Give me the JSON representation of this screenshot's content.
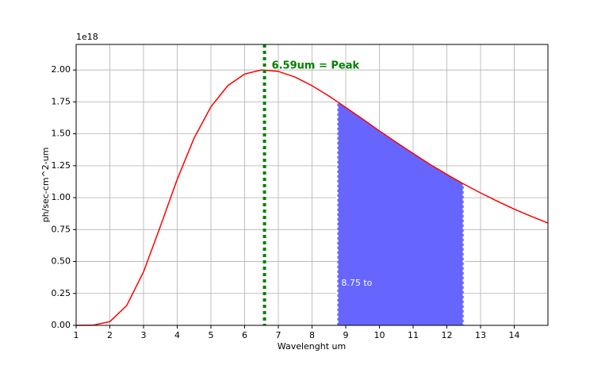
{
  "chart_data": {
    "type": "line",
    "x_label": "Wavelenght um",
    "y_label": "ph/sec-cm^2-um",
    "y_multiplier": "1e18",
    "x": [
      1,
      1.5,
      2,
      2.5,
      3,
      3.5,
      4,
      4.5,
      5,
      5.5,
      6,
      6.5,
      7,
      7.5,
      8,
      8.5,
      9,
      9.5,
      10,
      10.5,
      11,
      11.5,
      12,
      12.5,
      13,
      13.5,
      14,
      14.5,
      15
    ],
    "series": [
      {
        "color": "#ff0000",
        "values": [
          0,
          0.0012,
          0.029,
          0.155,
          0.419,
          0.775,
          1.144,
          1.466,
          1.712,
          1.877,
          1.968,
          2.0,
          1.989,
          1.944,
          1.877,
          1.796,
          1.707,
          1.616,
          1.523,
          1.433,
          1.346,
          1.261,
          1.182,
          1.107,
          1.037,
          0.972,
          0.91,
          0.854,
          0.801
        ]
      }
    ],
    "shaded": {
      "color": "#6666ff",
      "x": [
        8.75,
        9,
        9.5,
        10,
        10.5,
        11,
        11.5,
        12,
        12.5
      ],
      "values": [
        1.753,
        1.707,
        1.616,
        1.523,
        1.433,
        1.346,
        1.261,
        1.182,
        1.107
      ],
      "label": "8.75 to"
    },
    "peak": {
      "x": 6.59,
      "label": "6.59um = Peak",
      "color": "#008000"
    },
    "xlim": [
      1,
      15
    ],
    "ylim": [
      0,
      2.2
    ],
    "xticks": [
      1,
      2,
      3,
      4,
      5,
      6,
      7,
      8,
      9,
      10,
      11,
      12,
      13,
      14
    ],
    "yticks": [
      {
        "value": 0,
        "label": "0.00"
      },
      {
        "value": 0.25,
        "label": "0.25"
      },
      {
        "value": 0.5,
        "label": "0.50"
      },
      {
        "value": 0.75,
        "label": "0.75"
      },
      {
        "value": 1.0,
        "label": "1.00"
      },
      {
        "value": 1.25,
        "label": "1.25"
      },
      {
        "value": 1.5,
        "label": "1.50"
      },
      {
        "value": 1.75,
        "label": "1.75"
      },
      {
        "value": 2.0,
        "label": "2.00"
      }
    ],
    "grid": true
  }
}
